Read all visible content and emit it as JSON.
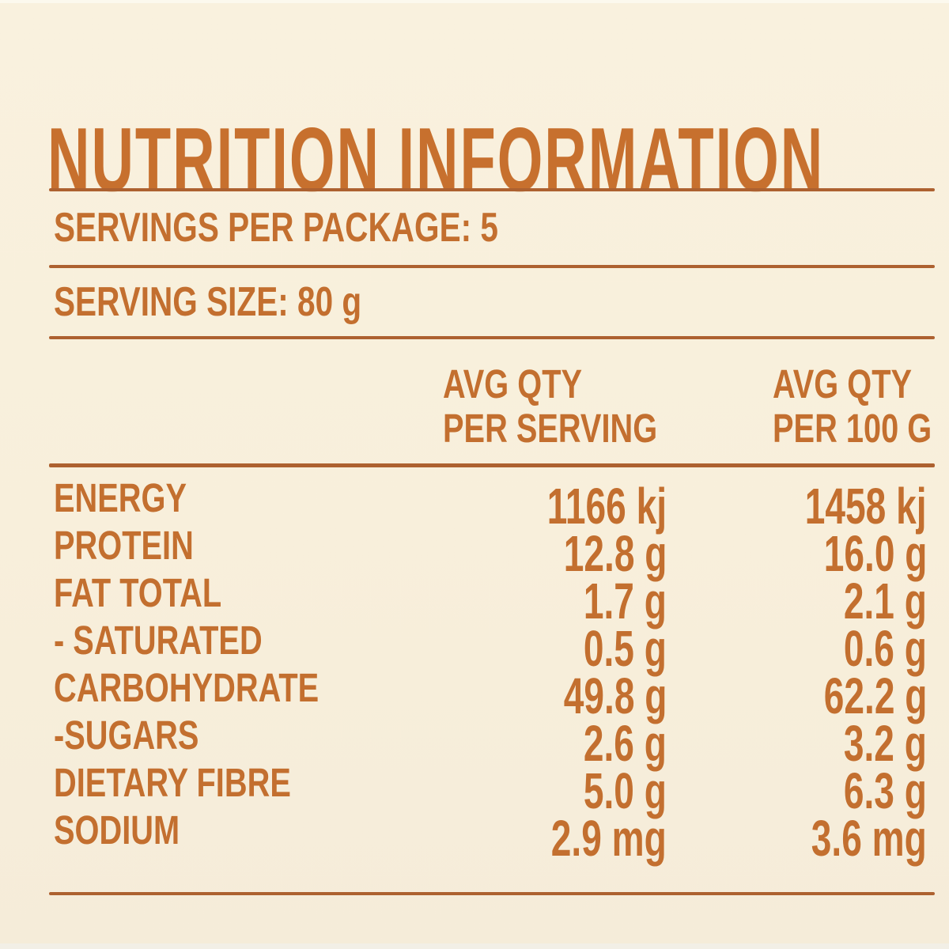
{
  "colors": {
    "background": "#f8efdb",
    "text_orange": "#c36f2f",
    "title_orange": "#c7702e",
    "rule_orange": "#ad6130"
  },
  "title": "NUTRITION INFORMATION",
  "serving_info": {
    "servings_per_package": "SERVINGS PER PACKAGE: 5",
    "serving_size": "SERVING SIZE: 80 g"
  },
  "columns": {
    "per_serving": {
      "line1": "AVG QTY",
      "line2": "PER SERVING"
    },
    "per_100g": {
      "line1": "AVG QTY",
      "line2": "PER 100 G"
    }
  },
  "rows": [
    {
      "label": "ENERGY",
      "per_serving": "1166 kj",
      "per_100g": "1458 kj"
    },
    {
      "label": "PROTEIN",
      "per_serving": "12.8 g",
      "per_100g": "16.0 g"
    },
    {
      "label": "FAT TOTAL",
      "per_serving": "1.7 g",
      "per_100g": "2.1 g"
    },
    {
      "label": "- SATURATED",
      "per_serving": "0.5 g",
      "per_100g": "0.6 g"
    },
    {
      "label": "CARBOHYDRATE",
      "per_serving": "49.8 g",
      "per_100g": "62.2 g"
    },
    {
      "label": "-SUGARS",
      "per_serving": "2.6 g",
      "per_100g": "3.2 g"
    },
    {
      "label": "DIETARY FIBRE",
      "per_serving": "5.0 g",
      "per_100g": "6.3 g"
    },
    {
      "label": "SODIUM",
      "per_serving": "2.9 mg",
      "per_100g": "3.6 mg"
    }
  ]
}
